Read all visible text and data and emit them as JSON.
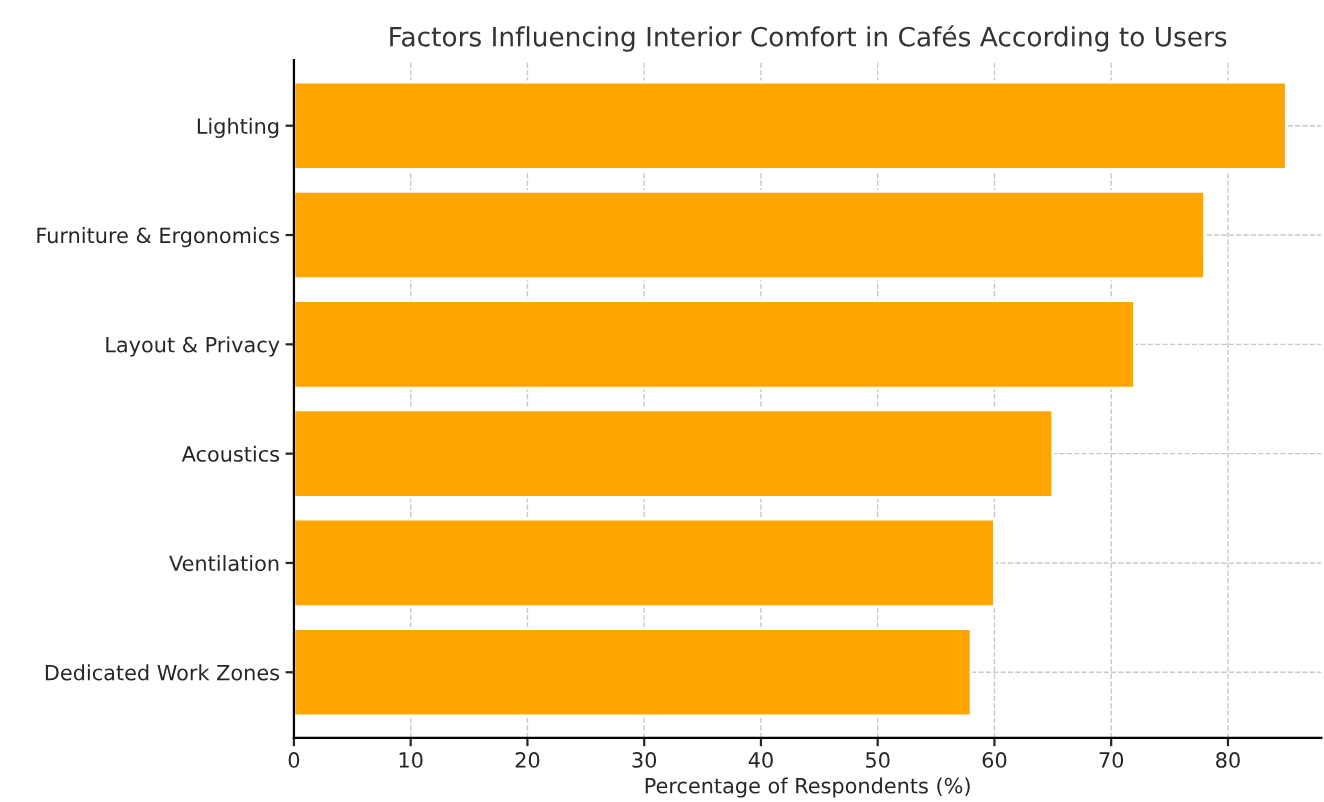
{
  "chart_data": {
    "type": "bar",
    "orientation": "horizontal",
    "title": "Factors Influencing Interior Comfort in Cafés According to Users",
    "xlabel": "Percentage of Respondents (%)",
    "categories": [
      "Lighting",
      "Furniture & Ergonomics",
      "Layout & Privacy",
      "Acoustics",
      "Ventilation",
      "Dedicated Work Zones"
    ],
    "values": [
      85,
      78,
      72,
      65,
      60,
      58
    ],
    "color": "#ffa500",
    "xlim": [
      0,
      88
    ],
    "xticks": [
      0,
      10,
      20,
      30,
      40,
      50,
      60,
      70,
      80
    ],
    "grid": true
  }
}
